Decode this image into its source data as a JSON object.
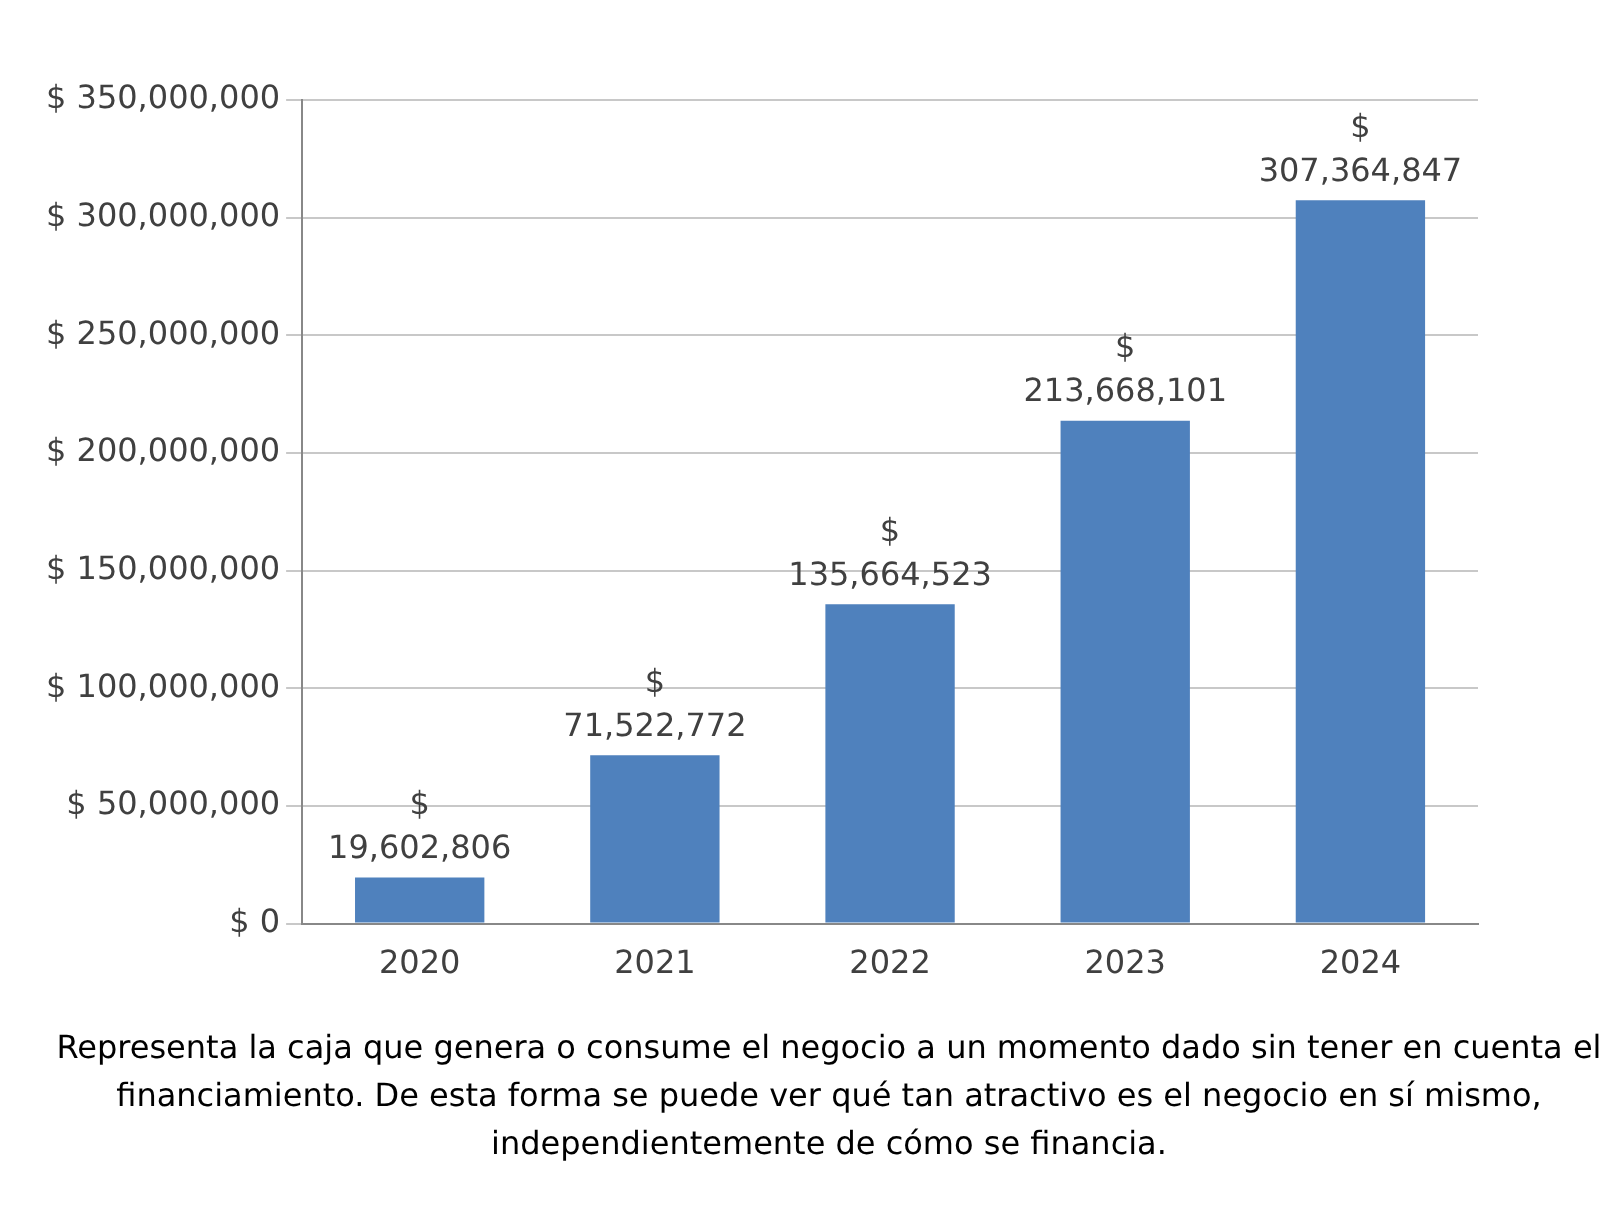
{
  "chart_data": {
    "type": "bar",
    "categories": [
      "2020",
      "2021",
      "2022",
      "2023",
      "2024"
    ],
    "values": [
      19602806,
      71522772,
      135664523,
      213668101,
      307364847
    ],
    "value_labels": [
      "$ 19,602,806",
      "$ 71,522,772",
      "$ 135,664,523",
      "$ 213,668,101",
      "$ 307,364,847"
    ],
    "color": "#4f81bd",
    "ylim": [
      0,
      350000000
    ],
    "yticks": [
      {
        "value": 0,
        "label": "$ 0"
      },
      {
        "value": 50000000,
        "label": "$ 50,000,000"
      },
      {
        "value": 100000000,
        "label": "$ 100,000,000"
      },
      {
        "value": 150000000,
        "label": "$ 150,000,000"
      },
      {
        "value": 200000000,
        "label": "$ 200,000,000"
      },
      {
        "value": 250000000,
        "label": "$ 250,000,000"
      },
      {
        "value": 300000000,
        "label": "$ 300,000,000"
      },
      {
        "value": 350000000,
        "label": "$ 350,000,000"
      }
    ],
    "grid": "y",
    "annotations": [
      "Representa la caja que genera o consume el negocio a un momento dado sin tener en cuenta el financiamiento. De esta forma se puede ver qué tan atractivo es el negocio en sí mismo, independientemente de cómo se financia."
    ]
  }
}
